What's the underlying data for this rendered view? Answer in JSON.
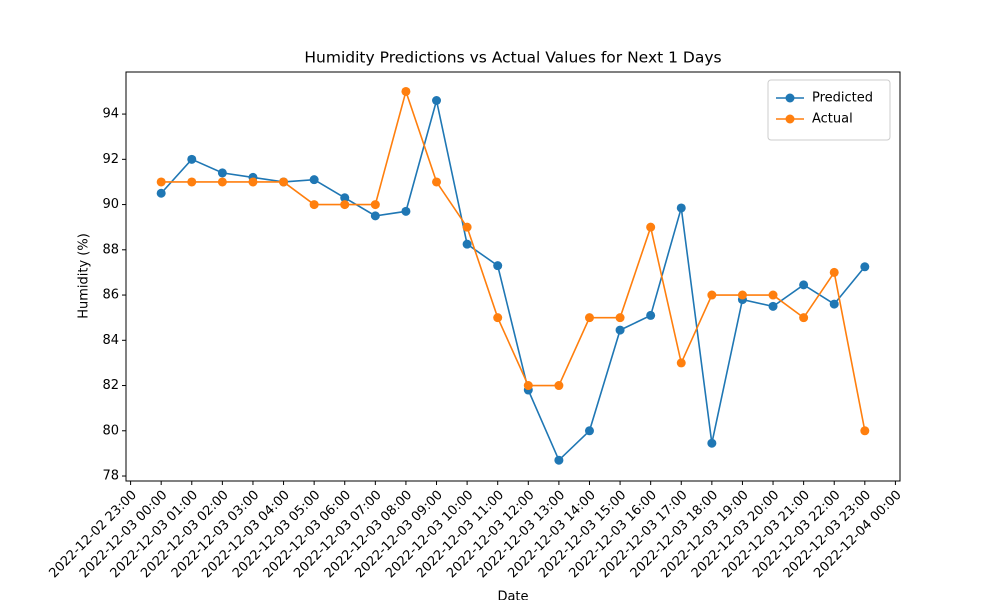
{
  "chart_data": {
    "type": "line",
    "title": "Humidity Predictions vs Actual Values for Next 1 Days",
    "xlabel": "Date",
    "ylabel": "Humidity (%)",
    "x": [
      "2022-12-03 00:00",
      "2022-12-03 01:00",
      "2022-12-03 02:00",
      "2022-12-03 03:00",
      "2022-12-03 04:00",
      "2022-12-03 05:00",
      "2022-12-03 06:00",
      "2022-12-03 07:00",
      "2022-12-03 08:00",
      "2022-12-03 09:00",
      "2022-12-03 10:00",
      "2022-12-03 11:00",
      "2022-12-03 12:00",
      "2022-12-03 13:00",
      "2022-12-03 14:00",
      "2022-12-03 15:00",
      "2022-12-03 16:00",
      "2022-12-03 17:00",
      "2022-12-03 18:00",
      "2022-12-03 19:00",
      "2022-12-03 20:00",
      "2022-12-03 21:00",
      "2022-12-03 22:00",
      "2022-12-03 23:00"
    ],
    "series": [
      {
        "name": "Predicted",
        "color": "#1f77b4",
        "values": [
          90.5,
          92.0,
          91.4,
          91.2,
          91.0,
          91.1,
          90.3,
          89.5,
          89.7,
          94.6,
          88.25,
          87.3,
          81.8,
          78.7,
          80.0,
          84.45,
          85.1,
          89.85,
          79.45,
          85.8,
          85.5,
          86.45,
          85.6,
          87.25
        ]
      },
      {
        "name": "Actual",
        "color": "#ff7f0e",
        "values": [
          91,
          91,
          91,
          91,
          91,
          90,
          90,
          90,
          95,
          91,
          89,
          85,
          82,
          82,
          85,
          85,
          89,
          83,
          86,
          86,
          86,
          85,
          87,
          80
        ]
      }
    ],
    "xlim": [
      "2022-12-02 22:51",
      "2022-12-04 00:09"
    ],
    "xticks": [
      "2022-12-02 23:00",
      "2022-12-03 00:00",
      "2022-12-03 01:00",
      "2022-12-03 02:00",
      "2022-12-03 03:00",
      "2022-12-03 04:00",
      "2022-12-03 05:00",
      "2022-12-03 06:00",
      "2022-12-03 07:00",
      "2022-12-03 08:00",
      "2022-12-03 09:00",
      "2022-12-03 10:00",
      "2022-12-03 11:00",
      "2022-12-03 12:00",
      "2022-12-03 13:00",
      "2022-12-03 14:00",
      "2022-12-03 15:00",
      "2022-12-03 16:00",
      "2022-12-03 17:00",
      "2022-12-03 18:00",
      "2022-12-03 19:00",
      "2022-12-03 20:00",
      "2022-12-03 21:00",
      "2022-12-03 22:00",
      "2022-12-03 23:00",
      "2022-12-04 00:00"
    ],
    "ylim": [
      77.78,
      95.86
    ],
    "yticks": [
      78,
      80,
      82,
      84,
      86,
      88,
      90,
      92,
      94
    ],
    "grid": false,
    "legend": "upper right",
    "markers": true
  }
}
